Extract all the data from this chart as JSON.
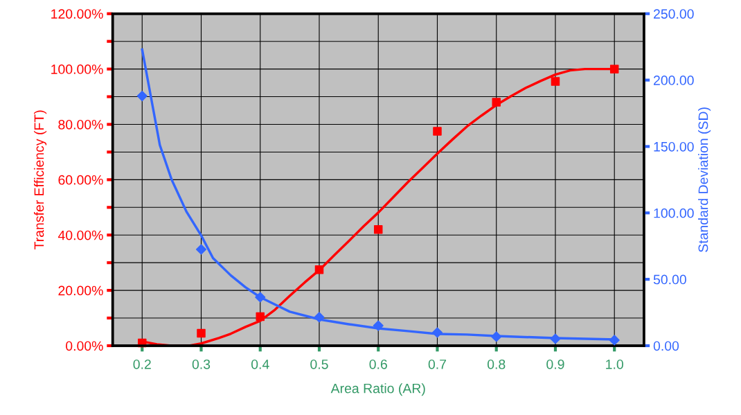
{
  "chart_data": {
    "type": "scatter",
    "xlabel": "Area Ratio (AR)",
    "ylabel": "Transfer Efficiency (FT)",
    "y2label": "Standard Deviation (SD)",
    "xlim": [
      0.15,
      1.05
    ],
    "xticks": [
      {
        "value": 0.2,
        "label": "0.2"
      },
      {
        "value": 0.3,
        "label": "0.3"
      },
      {
        "value": 0.4,
        "label": "0.4"
      },
      {
        "value": 0.5,
        "label": "0.5"
      },
      {
        "value": 0.6,
        "label": "0.6"
      },
      {
        "value": 0.7,
        "label": "0.7"
      },
      {
        "value": 0.8,
        "label": "0.8"
      },
      {
        "value": 0.9,
        "label": "0.9"
      },
      {
        "value": 1.0,
        "label": "1.0"
      }
    ],
    "ylim": [
      0,
      120
    ],
    "yticks": [
      {
        "value": 0,
        "label": "0.00%"
      },
      {
        "value": 10,
        "label": null
      },
      {
        "value": 20,
        "label": "20.00%"
      },
      {
        "value": 30,
        "label": null
      },
      {
        "value": 40,
        "label": "40.00%"
      },
      {
        "value": 50,
        "label": null
      },
      {
        "value": 60,
        "label": "60.00%"
      },
      {
        "value": 70,
        "label": null
      },
      {
        "value": 80,
        "label": "80.00%"
      },
      {
        "value": 90,
        "label": null
      },
      {
        "value": 100,
        "label": "100.00%"
      },
      {
        "value": 110,
        "label": null
      },
      {
        "value": 120,
        "label": "120.00%"
      }
    ],
    "y2lim": [
      0,
      250
    ],
    "y2ticks": [
      {
        "value": 0,
        "label": "0.00"
      },
      {
        "value": 50,
        "label": "50.00"
      },
      {
        "value": 100,
        "label": "100.00"
      },
      {
        "value": 150,
        "label": "150.00"
      },
      {
        "value": 200,
        "label": "200.00"
      },
      {
        "value": 250,
        "label": "250.00"
      }
    ],
    "grid": true,
    "series": [
      {
        "marker": "square",
        "color": "#ff0000",
        "x": [
          0.2,
          0.3,
          0.4,
          0.5,
          0.6,
          0.7,
          0.8,
          0.9,
          1.0
        ],
        "values": [
          1,
          4.5,
          10.5,
          27.5,
          42,
          77.5,
          88,
          95.5,
          100
        ]
      },
      {
        "type": "line",
        "marker": "none",
        "color": "#ff0000",
        "x": [
          0.2,
          0.225,
          0.25,
          0.28,
          0.3,
          0.33,
          0.35,
          0.375,
          0.4,
          0.425,
          0.45,
          0.475,
          0.5,
          0.525,
          0.55,
          0.575,
          0.6,
          0.625,
          0.65,
          0.675,
          0.7,
          0.725,
          0.75,
          0.775,
          0.8,
          0.825,
          0.85,
          0.875,
          0.9,
          0.925,
          0.95,
          1.0
        ],
        "values": [
          1.5,
          0.5,
          0,
          0,
          0.8,
          2.8,
          4.3,
          6.8,
          9,
          13,
          18,
          22.8,
          27.3,
          32.6,
          37.8,
          43.1,
          48.1,
          53.6,
          59.1,
          64.2,
          69.4,
          74.4,
          79.2,
          83.2,
          87,
          90.2,
          93.2,
          95.7,
          98,
          99.5,
          100,
          100
        ]
      },
      {
        "marker": "diamond",
        "axis": "y2",
        "color": "#3366ff",
        "x": [
          0.2,
          0.3,
          0.4,
          0.5,
          0.6,
          0.7,
          0.8,
          0.9,
          1.0
        ],
        "values": [
          188,
          72.5,
          36.5,
          21.4,
          15.1,
          9.9,
          6.8,
          5.2,
          4.2
        ]
      },
      {
        "type": "line",
        "marker": "none",
        "axis": "y2",
        "color": "#3366ff",
        "x": [
          0.2,
          0.215,
          0.23,
          0.25,
          0.275,
          0.3,
          0.32,
          0.35,
          0.375,
          0.4,
          0.425,
          0.45,
          0.5,
          0.55,
          0.6,
          0.65,
          0.7,
          0.75,
          0.8,
          0.9,
          1.0
        ],
        "values": [
          223,
          187,
          151,
          125,
          101,
          83,
          66,
          53,
          44,
          36.5,
          31,
          25.6,
          19.8,
          16.2,
          13,
          11,
          8.9,
          8.4,
          7.3,
          5.7,
          4.7
        ]
      }
    ]
  }
}
